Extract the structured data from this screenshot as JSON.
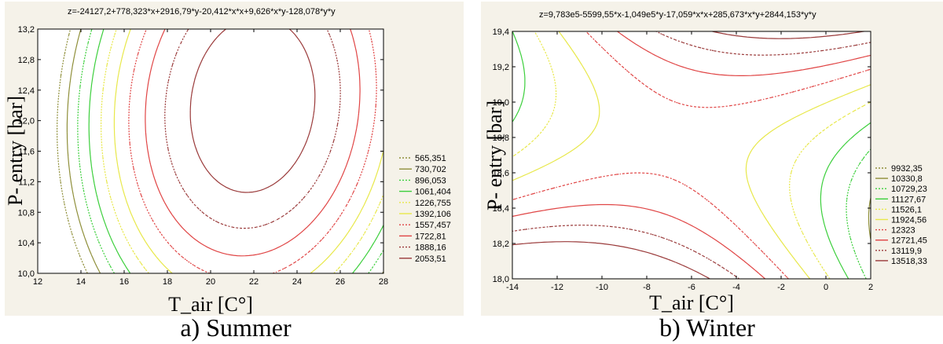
{
  "chart_data": [
    {
      "type": "contour",
      "equation": "z=-24127,2+778,323*x+2916,79*y-20,412*x*x+9,626*x*y-128,078*y*y",
      "xlabel": "T_air [C°]",
      "ylabel": "P- entry [bar]",
      "caption": "a) Summer",
      "x_ticks": [
        "12",
        "14",
        "16",
        "18",
        "20",
        "22",
        "24",
        "26",
        "28"
      ],
      "y_ticks": [
        "10,0",
        "10,4",
        "10,8",
        "11,2",
        "11,6",
        "12,0",
        "12,4",
        "12,8",
        "13,2"
      ],
      "xlim": [
        12,
        28
      ],
      "ylim": [
        10.0,
        13.2
      ],
      "coefficients": {
        "c0": -24127.2,
        "x": 778.323,
        "y": 2916.79,
        "xx": -20.412,
        "xy": 9.626,
        "yy": -128.078
      },
      "legend": [
        {
          "label": "565,351",
          "value": 565.351,
          "color": "#8f8f3a",
          "dash": true
        },
        {
          "label": "730,702",
          "value": 730.702,
          "color": "#8f8f3a",
          "dash": false
        },
        {
          "label": "896,053",
          "value": 896.053,
          "color": "#3ccf3c",
          "dash": true
        },
        {
          "label": "1061,404",
          "value": 1061.404,
          "color": "#3ccf3c",
          "dash": false
        },
        {
          "label": "1226,755",
          "value": 1226.755,
          "color": "#e8e84a",
          "dash": true
        },
        {
          "label": "1392,106",
          "value": 1392.106,
          "color": "#e8e84a",
          "dash": false
        },
        {
          "label": "1557,457",
          "value": 1557.457,
          "color": "#e04545",
          "dash": true
        },
        {
          "label": "1722,81",
          "value": 1722.81,
          "color": "#e04545",
          "dash": false
        },
        {
          "label": "1888,16",
          "value": 1888.16,
          "color": "#9a3a3a",
          "dash": true
        },
        {
          "label": "2053,51",
          "value": 2053.51,
          "color": "#9a3a3a",
          "dash": false
        }
      ]
    },
    {
      "type": "contour",
      "equation": "z=9,783e5-5599,55*x-1,049e5*y-17,059*x*x+285,673*x*y+2844,153*y*y",
      "xlabel": "T_air [C°]",
      "ylabel": "P- entry [bar]",
      "caption": "b) Winter",
      "x_ticks": [
        "-14",
        "-12",
        "-10",
        "-8",
        "-6",
        "-4",
        "-2",
        "0",
        "2"
      ],
      "y_ticks": [
        "18,0",
        "18,2",
        "18,4",
        "18,6",
        "18,8",
        "19,0",
        "19,2",
        "19,4"
      ],
      "xlim": [
        -14,
        2
      ],
      "ylim": [
        18.0,
        19.4
      ],
      "coefficients": {
        "c0": 978300,
        "x": -5599.55,
        "y": -104900,
        "xx": -17.059,
        "xy": 285.673,
        "yy": 2844.153
      },
      "legend": [
        {
          "label": "9932,35",
          "value": 9932.35,
          "color": "#8f8f3a",
          "dash": true
        },
        {
          "label": "10330,8",
          "value": 10330.8,
          "color": "#8f8f3a",
          "dash": false
        },
        {
          "label": "10729,23",
          "value": 10729.23,
          "color": "#3ccf3c",
          "dash": true
        },
        {
          "label": "11127,67",
          "value": 11127.67,
          "color": "#3ccf3c",
          "dash": false
        },
        {
          "label": "11526,1",
          "value": 11526.1,
          "color": "#e8e84a",
          "dash": true
        },
        {
          "label": "11924,56",
          "value": 11924.56,
          "color": "#e8e84a",
          "dash": false
        },
        {
          "label": "12323",
          "value": 12323,
          "color": "#e04545",
          "dash": true
        },
        {
          "label": "12721,45",
          "value": 12721.45,
          "color": "#e04545",
          "dash": false
        },
        {
          "label": "13119,9",
          "value": 13119.9,
          "color": "#9a3a3a",
          "dash": true
        },
        {
          "label": "13518,33",
          "value": 13518.33,
          "color": "#9a3a3a",
          "dash": false
        }
      ]
    }
  ]
}
